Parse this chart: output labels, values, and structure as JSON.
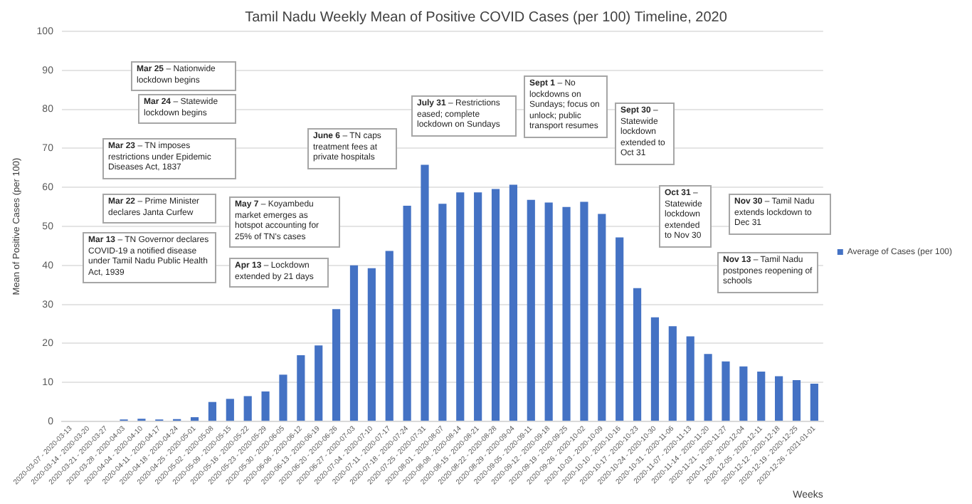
{
  "chart_data": {
    "type": "bar",
    "title": "Tamil Nadu Weekly Mean of Positive COVID Cases (per 100) Timeline, 2020",
    "xlabel": "Weeks",
    "ylabel": "Mean of Positive Cases (per 100)",
    "categories": [
      "2020-03-07 - 2020-03-13",
      "2020-03-14 - 2020-03-20",
      "2020-03-21 - 2020-03-27",
      "2020-03-28 - 2020-04-03",
      "2020-04-04 - 2020-04-10",
      "2020-04-11 - 2020-04-17",
      "2020-04-18 - 2020-04-24",
      "2020-04-25 - 2020-05-01",
      "2020-05-02 - 2020-05-08",
      "2020-05-09 - 2020-05-15",
      "2020-05-16 - 2020-05-22",
      "2020-05-23 - 2020-05-29",
      "2020-05-30 - 2020-06-05",
      "2020-06-06 - 2020-06-12",
      "2020-06-13 - 2020-06-19",
      "2020-06-20 - 2020-06-26",
      "2020-06-27 - 2020-07-03",
      "2020-07-04 - 2020-07-10",
      "2020-07-11 - 2020-07-17",
      "2020-07-18 - 2020-07-24",
      "2020-07-25 - 2020-07-31",
      "2020-08-01 - 2020-08-07",
      "2020-08-08 - 2020-08-14",
      "2020-08-15 - 2020-08-21",
      "2020-08-22 - 2020-08-28",
      "2020-08-29 - 2020-09-04",
      "2020-09-05 - 2020-09-11",
      "2020-09-12 - 2020-09-18",
      "2020-09-19 - 2020-09-25",
      "2020-09-26 - 2020-10-02",
      "2020-10-03 - 2020-10-09",
      "2020-10-10 - 2020-10-16",
      "2020-10-17 - 2020-10-23",
      "2020-10-24 - 2020-10-30",
      "2020-10-31 - 2020-11-06",
      "2020-11-07 - 2020-11-13",
      "2020-11-14 - 2020-11-20",
      "2020-11-21 - 2020-11-27",
      "2020-11-28 - 2020-12-04",
      "2020-12-05 - 2020-12-11",
      "2020-12-12 - 2020-12-18",
      "2020-12-19 - 2020-12-25",
      "2020-12-26 - 2021-01-01"
    ],
    "series": [
      {
        "name": "Average of Cases (per 100)",
        "color": "#4472c4",
        "values": [
          0,
          0,
          0,
          0.5,
          0.7,
          0.5,
          0.6,
          1.1,
          5,
          5.8,
          6.5,
          7.7,
          12,
          17,
          19.5,
          28.8,
          40,
          39.3,
          43.7,
          55.3,
          65.8,
          55.8,
          58.7,
          58.7,
          59.6,
          60.7,
          56.8,
          56.1,
          55,
          56.3,
          53.2,
          47.2,
          34.2,
          26.7,
          24.4,
          21.8,
          17.3,
          15.4,
          14.1,
          12.8,
          11.6,
          10.6,
          9.7
        ]
      }
    ],
    "ylim": [
      0,
      100
    ],
    "yticks": [
      0,
      10,
      20,
      30,
      40,
      50,
      60,
      70,
      80,
      90,
      100
    ],
    "grid": "y",
    "legend": "right",
    "annotations": [
      "Mar 25 – Nationwide lockdown begins",
      "Mar 24 – Statewide lockdown begins",
      "Mar 23 – TN imposes restrictions under Epidemic Diseases Act, 1837",
      "Mar 22 – Prime Minister declares Janta Curfew",
      "Mar 13 – TN Governor declares COVID-19 a notified disease under Tamil Nadu Public Health Act, 1939",
      "May 7 – Koyambedu market emerges as hotspot accounting for 25% of TN's cases",
      "Apr 13 – Lockdown extended by 21 days",
      "June 6 – TN caps treatment fees at private hospitals",
      "July 31 – Restrictions eased; complete lockdown on Sundays",
      "Sept 1 – No lockdowns on Sundays; focus on unlock; public transport resumes",
      "Sept 30 – Statewide lockdown extended to Oct 31",
      "Oct 31 – Statewide lockdown extended to Nov 30",
      "Nov 30 – Tamil Nadu extends lockdown to Dec 31",
      "Nov 13 – Tamil Nadu postpones reopening of schools"
    ]
  }
}
